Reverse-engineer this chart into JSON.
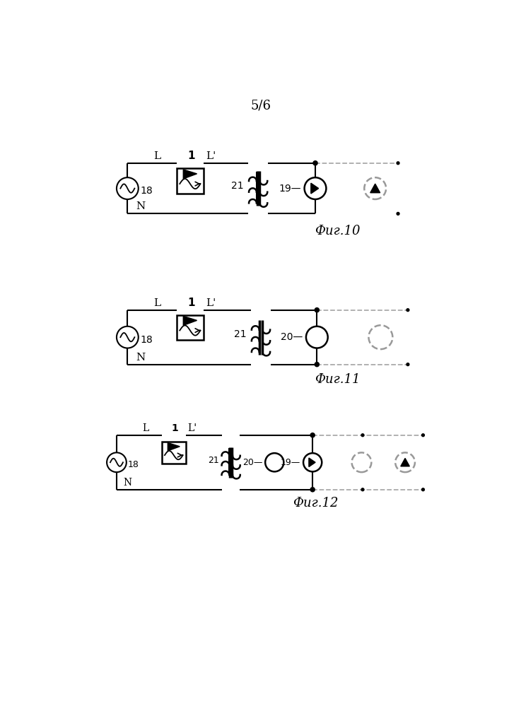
{
  "title": "5/6",
  "fig10_label": "Фиг.10",
  "fig11_label": "Фиг.11",
  "fig12_label": "Фиг.12",
  "background": "#ffffff"
}
